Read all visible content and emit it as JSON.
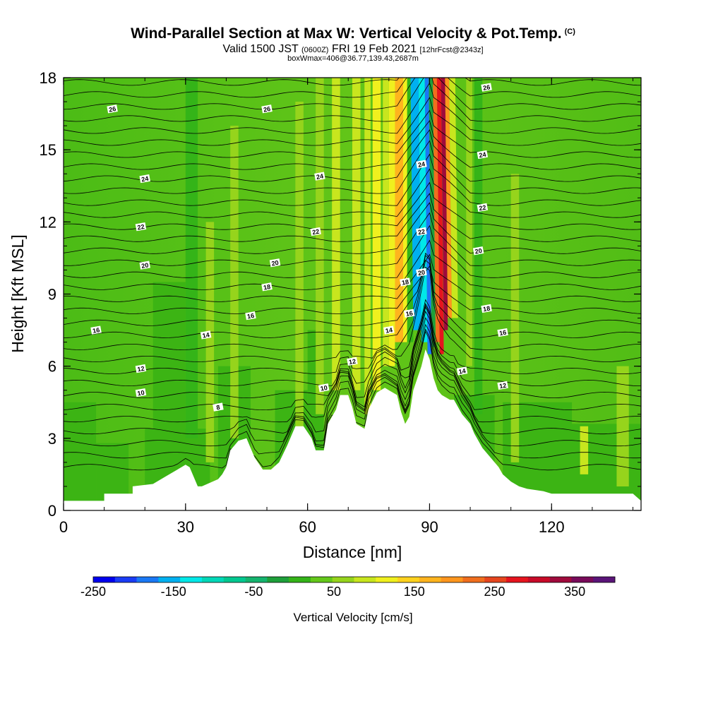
{
  "header": {
    "title": "Wind-Parallel Section at Max W: Vertical Velocity & Pot.Temp.",
    "copyright": "(C)",
    "valid_prefix": "Valid 1500 JST",
    "valid_utc": "(0600Z)",
    "valid_date": "FRI 19 Feb 2021",
    "forecast": "[12hrFcst@2343z]",
    "box_info": "boxWmax=406@36.77,139.43,2687m"
  },
  "chart_data": {
    "type": "heatmap",
    "title": "Wind-Parallel Section at Max W: Vertical Velocity & Pot.Temp.",
    "xlabel": "Distance [nm]",
    "ylabel": "Height [Kft MSL]",
    "xlim": [
      0,
      142
    ],
    "ylim": [
      0,
      18
    ],
    "x_ticks": [
      "0",
      "30",
      "60",
      "90",
      "120"
    ],
    "y_ticks": [
      "0",
      "3",
      "6",
      "9",
      "12",
      "15",
      "18"
    ],
    "grid": false,
    "colorbar": {
      "title": "Vertical Velocity [cm/s]",
      "tick_labels": [
        "-250",
        "-150",
        "-50",
        "50",
        "150",
        "250",
        "350"
      ],
      "tick_values": [
        -250,
        -150,
        -50,
        50,
        150,
        250,
        350
      ],
      "range": [
        -250,
        400
      ],
      "colors": [
        "#0000ee",
        "#1a3cf5",
        "#1a78f5",
        "#00b0f0",
        "#00e8e8",
        "#00d8b8",
        "#00c890",
        "#14b46e",
        "#1ea03a",
        "#34b418",
        "#64c81a",
        "#96d41c",
        "#c8e61e",
        "#f0f01e",
        "#ffd21e",
        "#ffb41e",
        "#ff961e",
        "#f06e1e",
        "#e6461e",
        "#e6141e",
        "#c80a28",
        "#a00a3c",
        "#780a5a",
        "#5a1478"
      ]
    },
    "terrain": {
      "x": [
        0,
        10,
        10,
        17,
        17,
        22,
        25,
        28,
        30,
        31,
        32,
        33,
        34,
        38,
        39,
        40,
        41,
        43,
        45,
        47,
        49,
        51,
        53,
        55,
        57,
        59,
        61,
        62,
        64,
        65,
        67,
        68,
        70,
        71,
        72,
        74,
        75,
        77,
        79,
        80,
        82,
        83,
        84,
        85,
        86,
        88,
        89,
        90,
        91,
        92,
        93,
        95,
        96,
        98,
        100,
        101,
        103,
        105,
        107,
        108,
        110,
        112,
        114,
        118,
        120,
        127,
        134,
        140,
        142
      ],
      "height_kft": [
        0.4,
        0.4,
        0.7,
        0.7,
        1.0,
        1.1,
        1.4,
        1.7,
        1.9,
        1.8,
        1.4,
        1.0,
        1.0,
        1.3,
        1.5,
        1.8,
        2.5,
        2.9,
        3.0,
        2.2,
        1.7,
        1.7,
        2.0,
        2.7,
        3.5,
        3.5,
        3.0,
        2.5,
        2.5,
        3.6,
        4.2,
        4.8,
        4.8,
        4.3,
        3.6,
        3.4,
        4.2,
        4.9,
        5.1,
        5.0,
        4.8,
        4.1,
        3.6,
        3.9,
        5.0,
        6.0,
        6.7,
        6.3,
        5.5,
        5.0,
        4.8,
        4.6,
        4.6,
        4.0,
        3.6,
        3.2,
        2.6,
        2.2,
        1.8,
        1.5,
        1.2,
        1.0,
        0.9,
        0.8,
        0.7,
        0.7,
        0.7,
        0.7,
        0.4
      ]
    },
    "theta_contour_labels": [
      {
        "x": 12,
        "y": 16.7,
        "label": "26"
      },
      {
        "x": 50,
        "y": 16.7,
        "label": "26"
      },
      {
        "x": 104,
        "y": 17.6,
        "label": "26"
      },
      {
        "x": 20,
        "y": 13.8,
        "label": "24"
      },
      {
        "x": 63,
        "y": 13.9,
        "label": "24"
      },
      {
        "x": 88,
        "y": 14.4,
        "label": "24"
      },
      {
        "x": 103,
        "y": 14.8,
        "label": "24"
      },
      {
        "x": 19,
        "y": 11.8,
        "label": "22"
      },
      {
        "x": 62,
        "y": 11.6,
        "label": "22"
      },
      {
        "x": 88,
        "y": 11.6,
        "label": "22"
      },
      {
        "x": 103,
        "y": 12.6,
        "label": "22"
      },
      {
        "x": 20,
        "y": 10.2,
        "label": "20"
      },
      {
        "x": 52,
        "y": 10.3,
        "label": "20"
      },
      {
        "x": 88,
        "y": 9.9,
        "label": "20"
      },
      {
        "x": 102,
        "y": 10.8,
        "label": "20"
      },
      {
        "x": 50,
        "y": 9.3,
        "label": "18"
      },
      {
        "x": 84,
        "y": 9.5,
        "label": "18"
      },
      {
        "x": 104,
        "y": 8.4,
        "label": "18"
      },
      {
        "x": 8,
        "y": 7.5,
        "label": "16"
      },
      {
        "x": 46,
        "y": 8.1,
        "label": "16"
      },
      {
        "x": 85,
        "y": 8.2,
        "label": "16"
      },
      {
        "x": 108,
        "y": 7.4,
        "label": "16"
      },
      {
        "x": 35,
        "y": 7.3,
        "label": "14"
      },
      {
        "x": 80,
        "y": 7.5,
        "label": "14"
      },
      {
        "x": 98,
        "y": 5.8,
        "label": "14"
      },
      {
        "x": 19,
        "y": 5.9,
        "label": "12"
      },
      {
        "x": 71,
        "y": 6.2,
        "label": "12"
      },
      {
        "x": 108,
        "y": 5.2,
        "label": "12"
      },
      {
        "x": 19,
        "y": 4.9,
        "label": "10"
      },
      {
        "x": 64,
        "y": 5.1,
        "label": "10"
      },
      {
        "x": 38,
        "y": 4.3,
        "label": "8"
      }
    ]
  }
}
